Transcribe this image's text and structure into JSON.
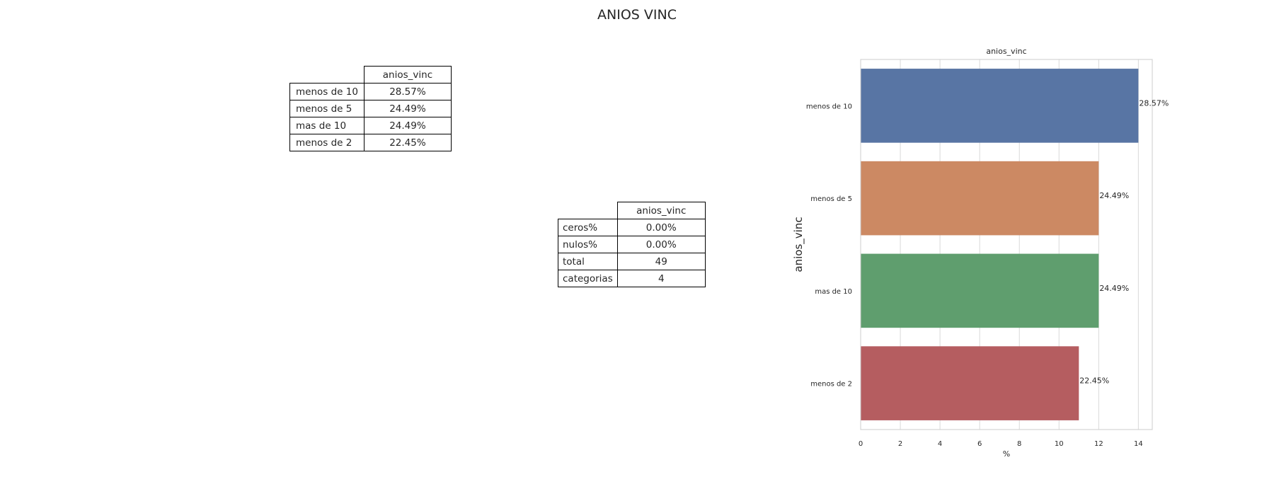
{
  "suptitle": "ANIOS VINC",
  "freq_table": {
    "header": "anios_vinc",
    "rows": [
      {
        "label": "menos de 10",
        "value": "28.57%"
      },
      {
        "label": "menos de 5",
        "value": "24.49%"
      },
      {
        "label": "mas de 10",
        "value": "24.49%"
      },
      {
        "label": "menos de 2",
        "value": "22.45%"
      }
    ]
  },
  "summary_table": {
    "header": "anios_vinc",
    "rows": [
      {
        "label": "ceros%",
        "value": "0.00%"
      },
      {
        "label": "nulos%",
        "value": "0.00%"
      },
      {
        "label": "total",
        "value": "49"
      },
      {
        "label": "categorias",
        "value": "4"
      }
    ]
  },
  "chart_data": {
    "type": "bar",
    "orientation": "horizontal",
    "title": "anios_vinc",
    "xlabel": "%",
    "ylabel": "anios_vinc",
    "categories": [
      "menos de 10",
      "menos de 5",
      "mas de 10",
      "menos de 2"
    ],
    "values": [
      14,
      12,
      12,
      11
    ],
    "data_labels": [
      "28.57%",
      "24.49%",
      "24.49%",
      "22.45%"
    ],
    "colors": [
      "#5875a4",
      "#cc8963",
      "#5f9e6e",
      "#b55d60"
    ],
    "xlim": [
      0,
      14.7
    ],
    "xticks": [
      0,
      2,
      4,
      6,
      8,
      10,
      12,
      14
    ],
    "grid": true
  }
}
